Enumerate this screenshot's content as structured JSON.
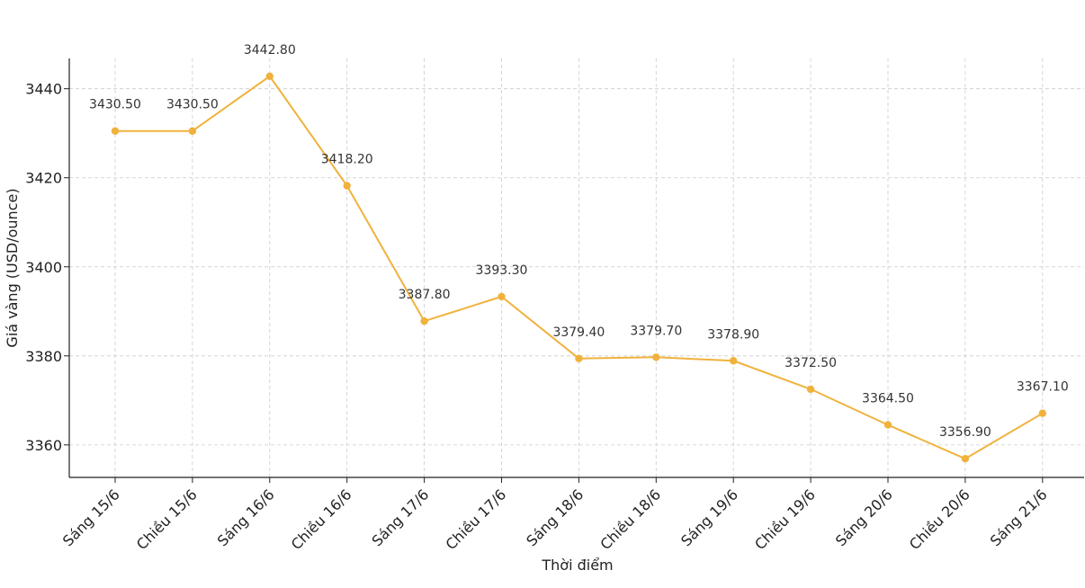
{
  "chart_data": {
    "type": "line",
    "title": "",
    "xlabel": "Thời điểm",
    "ylabel": "Giá vàng (USD/ounce)",
    "categories": [
      "Sáng 15/6",
      "Chiều 15/6",
      "Sáng 16/6",
      "Chiều 16/6",
      "Sáng 17/6",
      "Chiều 17/6",
      "Sáng 18/6",
      "Chiều 18/6",
      "Sáng 19/6",
      "Chiều 19/6",
      "Sáng 20/6",
      "Chiều 20/6",
      "Sáng 21/6"
    ],
    "series": [
      {
        "values": [
          3430.5,
          3430.5,
          3442.8,
          3418.2,
          3387.8,
          3393.3,
          3379.4,
          3379.7,
          3378.9,
          3372.5,
          3364.5,
          3356.9,
          3367.1
        ],
        "color": "#f0b23c"
      }
    ],
    "data_labels": [
      "3430.50",
      "3430.50",
      "3442.80",
      "3418.20",
      "3387.80",
      "3393.30",
      "3379.40",
      "3379.70",
      "3378.90",
      "3372.50",
      "3364.50",
      "3356.90",
      "3367.10"
    ],
    "yticks": [
      3360,
      3380,
      3400,
      3420,
      3440
    ],
    "ylim": [
      3352.7,
      3446.8
    ],
    "grid": true,
    "legend": "none"
  }
}
